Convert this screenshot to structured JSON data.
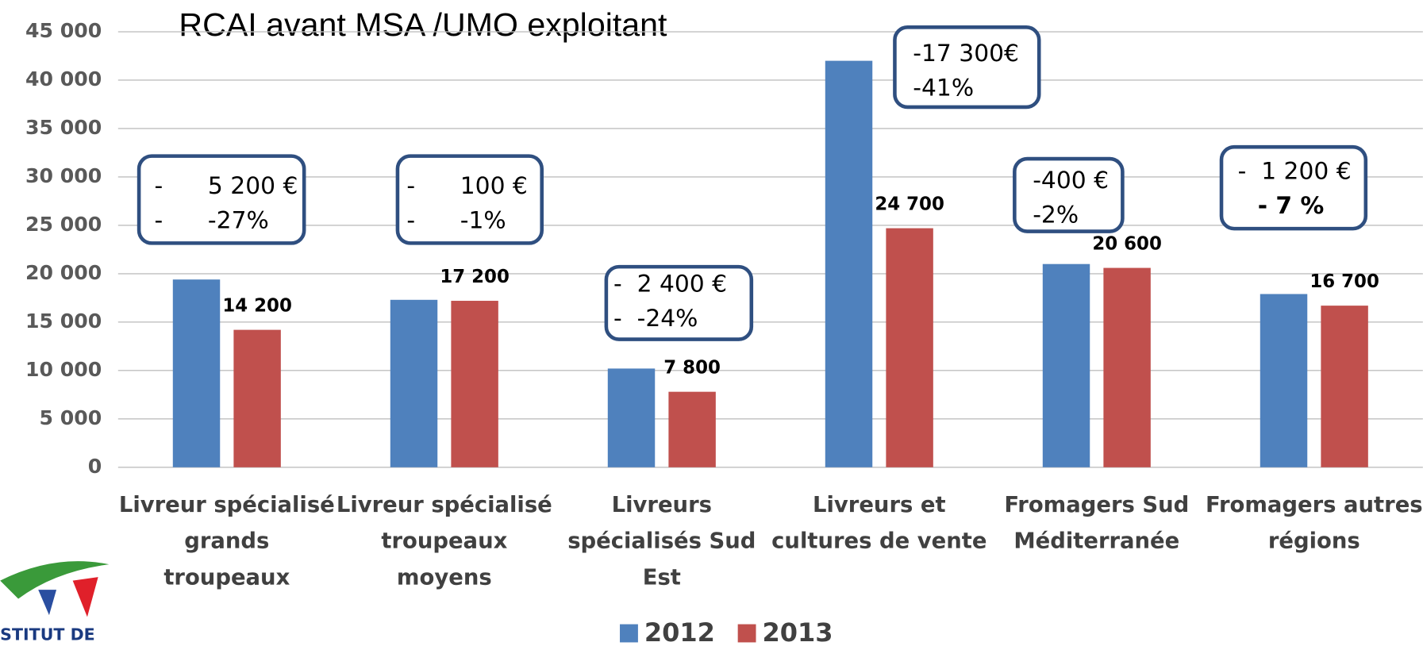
{
  "chart_data": {
    "type": "bar",
    "title": "RCAI avant MSA /UMO exploitant",
    "categories": [
      "Livreur spécialisé\ngrands\ntroupeaux",
      "Livreur spécialisé\ntroupeaux\nmoyens",
      "Livreurs\nspécialisés Sud\nEst",
      "Livreurs et\ncultures de vente",
      "Fromagers Sud\nMéditerranée",
      "Fromagers autres\nrégions"
    ],
    "series": [
      {
        "name": "2012",
        "color": "#4f81bd",
        "values": [
          19400,
          17300,
          10200,
          42000,
          21000,
          17900
        ]
      },
      {
        "name": "2013",
        "color": "#c0504d",
        "values": [
          14200,
          17200,
          7800,
          24700,
          20600,
          16700
        ],
        "value_labels": [
          "14 200",
          "17 200",
          "7 800",
          "24 700",
          "20 600",
          "16 700"
        ]
      }
    ],
    "ylim": [
      0,
      45000
    ],
    "yticks": [
      0,
      {
        "value": 5000,
        "label": "5 000"
      },
      {
        "value": 10000,
        "label": "10 000"
      },
      {
        "value": 15000,
        "label": "15 000"
      },
      {
        "value": 20000,
        "label": "20 000"
      },
      {
        "value": 25000,
        "label": "25 000"
      },
      {
        "value": 30000,
        "label": "30 000"
      },
      {
        "value": 35000,
        "label": "35 000"
      },
      {
        "value": 40000,
        "label": "40 000"
      },
      {
        "value": 45000,
        "label": "45 000"
      }
    ],
    "grid": true,
    "legend": "bottom",
    "annotations": [
      [
        "-      5 200 €",
        "-      -27%"
      ],
      [
        "-      100 €",
        "-      -1%"
      ],
      [
        "-  2 400 €",
        "-  -24%"
      ],
      [
        "-17 300€",
        "-41%"
      ],
      [
        "-400 €",
        "-2%"
      ],
      [
        "-  1 200 €",
        "- 7 %"
      ]
    ]
  },
  "logo": {
    "text": "STITUT DE"
  }
}
